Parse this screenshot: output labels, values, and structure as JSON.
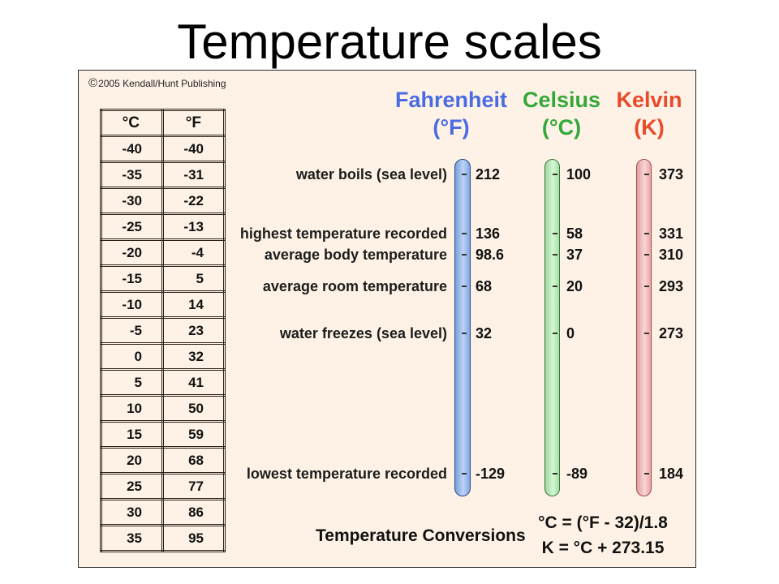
{
  "slide": {
    "title": "Temperature scales"
  },
  "figure": {
    "background_color": "#fef2e6",
    "copyright": {
      "symbol": "©",
      "text": "2005 Kendall/Hunt Publishing"
    },
    "conversion_table": {
      "headers": {
        "celsius": "°C",
        "fahrenheit": "°F"
      },
      "rows": [
        {
          "celsius": "-40",
          "fahrenheit": "-40"
        },
        {
          "celsius": "-35",
          "fahrenheit": "-31"
        },
        {
          "celsius": "-30",
          "fahrenheit": "-22"
        },
        {
          "celsius": "-25",
          "fahrenheit": "-13"
        },
        {
          "celsius": "-20",
          "fahrenheit": "-4"
        },
        {
          "celsius": "-15",
          "fahrenheit": "5"
        },
        {
          "celsius": "-10",
          "fahrenheit": "14"
        },
        {
          "celsius": "-5",
          "fahrenheit": "23"
        },
        {
          "celsius": "0",
          "fahrenheit": "32"
        },
        {
          "celsius": "5",
          "fahrenheit": "41"
        },
        {
          "celsius": "10",
          "fahrenheit": "50"
        },
        {
          "celsius": "15",
          "fahrenheit": "59"
        },
        {
          "celsius": "20",
          "fahrenheit": "68"
        },
        {
          "celsius": "25",
          "fahrenheit": "77"
        },
        {
          "celsius": "30",
          "fahrenheit": "86"
        },
        {
          "celsius": "35",
          "fahrenheit": "95"
        }
      ]
    },
    "scales": {
      "fahrenheit": {
        "name": "Fahrenheit",
        "unit": "(°F)",
        "color": "#4a6be2",
        "tube_color": "#86b0f0",
        "tube_border": "#2c4a8f"
      },
      "celsius": {
        "name": "Celsius",
        "unit": "(°C)",
        "color": "#34a83a",
        "tube_color": "#b2eeb2",
        "tube_border": "#357a35"
      },
      "kelvin": {
        "name": "Kelvin",
        "unit": "(K)",
        "color": "#e84a2b",
        "tube_color": "#f6b2b2",
        "tube_border": "#a94848"
      }
    },
    "reference_points": [
      {
        "label": "water boils (sea level)",
        "fahrenheit": "212",
        "celsius": "100",
        "kelvin": "373"
      },
      {
        "label": "highest temperature recorded",
        "fahrenheit": "136",
        "celsius": "58",
        "kelvin": "331"
      },
      {
        "label": "average body temperature",
        "fahrenheit": "98.6",
        "celsius": "37",
        "kelvin": "310"
      },
      {
        "label": "average room temperature",
        "fahrenheit": "68",
        "celsius": "20",
        "kelvin": "293"
      },
      {
        "label": "water freezes (sea level)",
        "fahrenheit": "32",
        "celsius": "0",
        "kelvin": "273"
      },
      {
        "label": "lowest temperature recorded",
        "fahrenheit": "-129",
        "celsius": "-89",
        "kelvin": "184"
      }
    ],
    "conversions": {
      "title": "Temperature Conversions",
      "celsius_formula": "°C = (°F - 32)/1.8",
      "kelvin_formula": "K = °C + 273.15"
    }
  }
}
